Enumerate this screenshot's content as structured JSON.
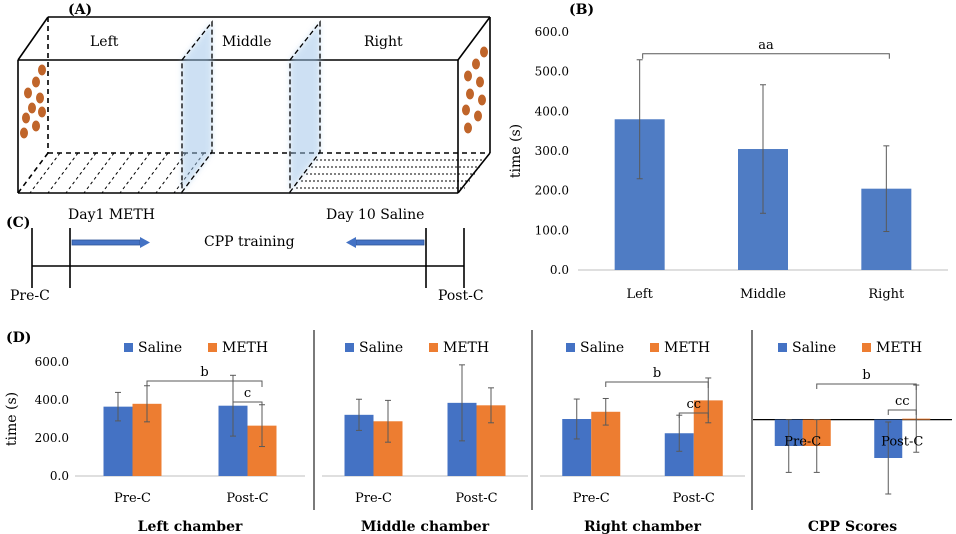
{
  "panel_labels": [
    "(A)",
    "(B)",
    "(C)",
    "(D)"
  ],
  "apparatus": {
    "left_label": "Left",
    "middle_label": "Middle",
    "right_label": "Right"
  },
  "timeline": {
    "day1": "Day1 METH",
    "day10": "Day 10 Saline",
    "center": "CPP training",
    "pre": "Pre-C",
    "post": "Post-C"
  },
  "colors": {
    "saline": "#4472C4",
    "meth": "#ED7D31",
    "blue_bar": "#4F7CC4",
    "err": "#595959"
  },
  "chart_data": [
    {
      "id": "B",
      "type": "bar",
      "title": "",
      "ylabel": "time (s)",
      "xlabel": "",
      "ylim": [
        0,
        600
      ],
      "yticks": [
        "0.0",
        "100.0",
        "200.0",
        "300.0",
        "400.0",
        "500.0",
        "600.0"
      ],
      "categories": [
        "Left",
        "Middle",
        "Right"
      ],
      "values": [
        380,
        305,
        205
      ],
      "errors": [
        150,
        162,
        108
      ],
      "annotations": [
        {
          "text": "aa",
          "from": 0,
          "to": 2
        }
      ]
    },
    {
      "id": "D1",
      "type": "bar",
      "title": "Left chamber",
      "ylabel": "time (s)",
      "ylim": [
        0,
        600
      ],
      "yticks": [
        "0.0",
        "200.0",
        "400.0",
        "600.0"
      ],
      "categories": [
        "Pre-C",
        "Post-C"
      ],
      "legend": [
        "Saline",
        "METH"
      ],
      "series": [
        {
          "name": "Saline",
          "values": [
            365,
            370
          ],
          "errors": [
            75,
            160
          ]
        },
        {
          "name": "METH",
          "values": [
            380,
            265
          ],
          "errors": [
            95,
            110
          ]
        }
      ],
      "annotations": [
        {
          "text": "b"
        },
        {
          "text": "c"
        }
      ]
    },
    {
      "id": "D2",
      "type": "bar",
      "title": "Middle chamber",
      "ylim": [
        0,
        600
      ],
      "categories": [
        "Pre-C",
        "Post-C"
      ],
      "legend": [
        "Saline",
        "METH"
      ],
      "series": [
        {
          "name": "Saline",
          "values": [
            322,
            385
          ],
          "errors": [
            82,
            200
          ]
        },
        {
          "name": "METH",
          "values": [
            288,
            372
          ],
          "errors": [
            110,
            92
          ]
        }
      ]
    },
    {
      "id": "D3",
      "type": "bar",
      "title": "Right chamber",
      "ylim": [
        0,
        600
      ],
      "categories": [
        "Pre-C",
        "Post-C"
      ],
      "legend": [
        "Saline",
        "METH"
      ],
      "series": [
        {
          "name": "Saline",
          "values": [
            300,
            225
          ],
          "errors": [
            105,
            95
          ]
        },
        {
          "name": "METH",
          "values": [
            338,
            398
          ],
          "errors": [
            70,
            118
          ]
        }
      ],
      "annotations": [
        {
          "text": "b"
        },
        {
          "text": "cc"
        }
      ]
    },
    {
      "id": "D4",
      "type": "bar",
      "title": "CPP Scores",
      "ylim": [
        -180,
        120
      ],
      "categories": [
        "Pre-C",
        "Post-C"
      ],
      "legend": [
        "Saline",
        "METH"
      ],
      "series": [
        {
          "name": "Saline",
          "values": [
            -55,
            -80
          ],
          "errors": [
            55,
            75
          ]
        },
        {
          "name": "METH",
          "values": [
            -55,
            2
          ],
          "errors": [
            55,
            70
          ]
        }
      ],
      "annotations": [
        {
          "text": "b"
        },
        {
          "text": "cc"
        }
      ]
    }
  ]
}
